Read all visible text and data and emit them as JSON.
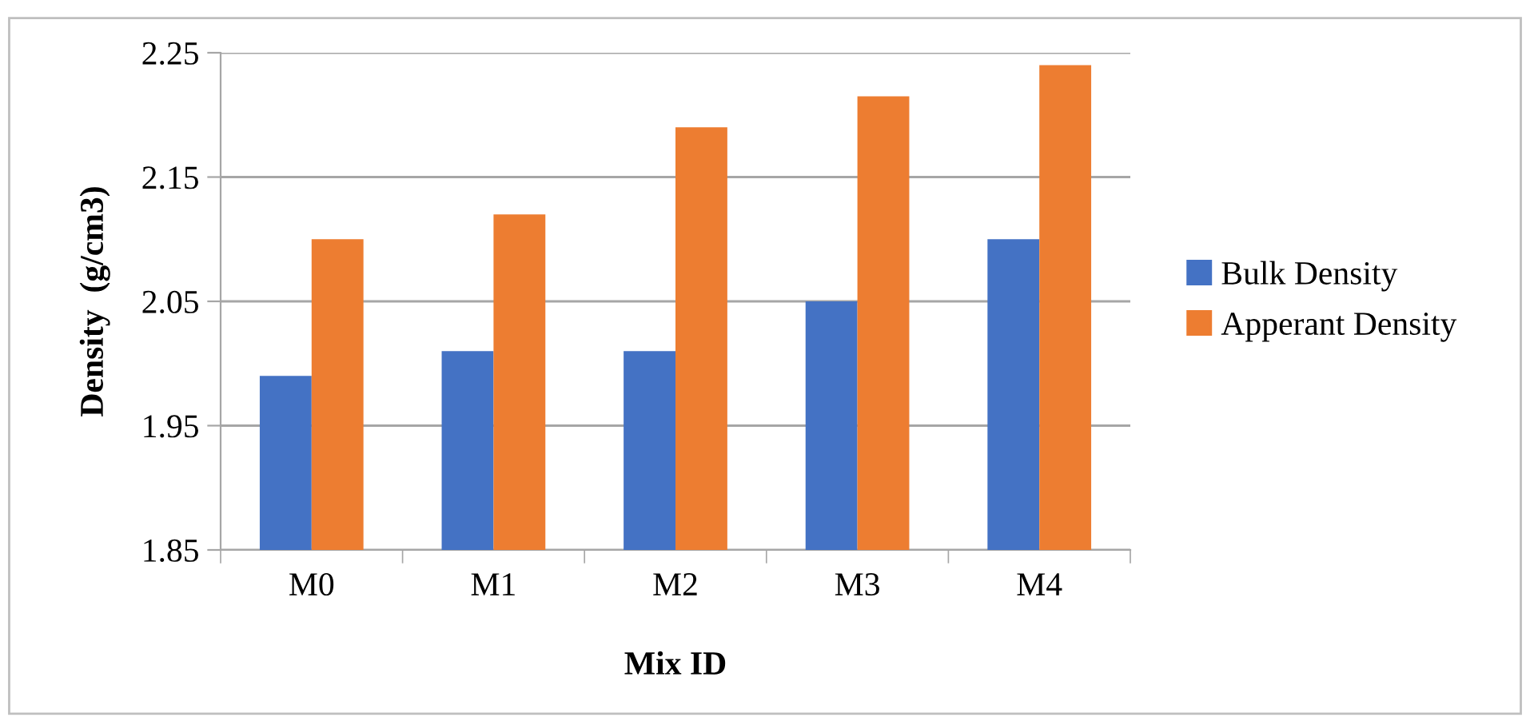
{
  "chart_data": {
    "type": "bar",
    "xlabel": "Mix ID",
    "ylabel": "Density  (g/cm3)",
    "categories": [
      "M0",
      "M1",
      "M2",
      "M3",
      "M4"
    ],
    "series": [
      {
        "name": "Bulk Density",
        "color": "#4472c4",
        "values": [
          1.99,
          2.01,
          2.01,
          2.05,
          2.1
        ]
      },
      {
        "name": "Apperant Density",
        "color": "#ed7d31",
        "values": [
          2.1,
          2.12,
          2.19,
          2.215,
          2.24
        ]
      }
    ],
    "ylim": [
      1.85,
      2.25
    ],
    "yticks": [
      1.85,
      1.95,
      2.05,
      2.15,
      2.25
    ],
    "grid": "y",
    "legend": "right"
  }
}
